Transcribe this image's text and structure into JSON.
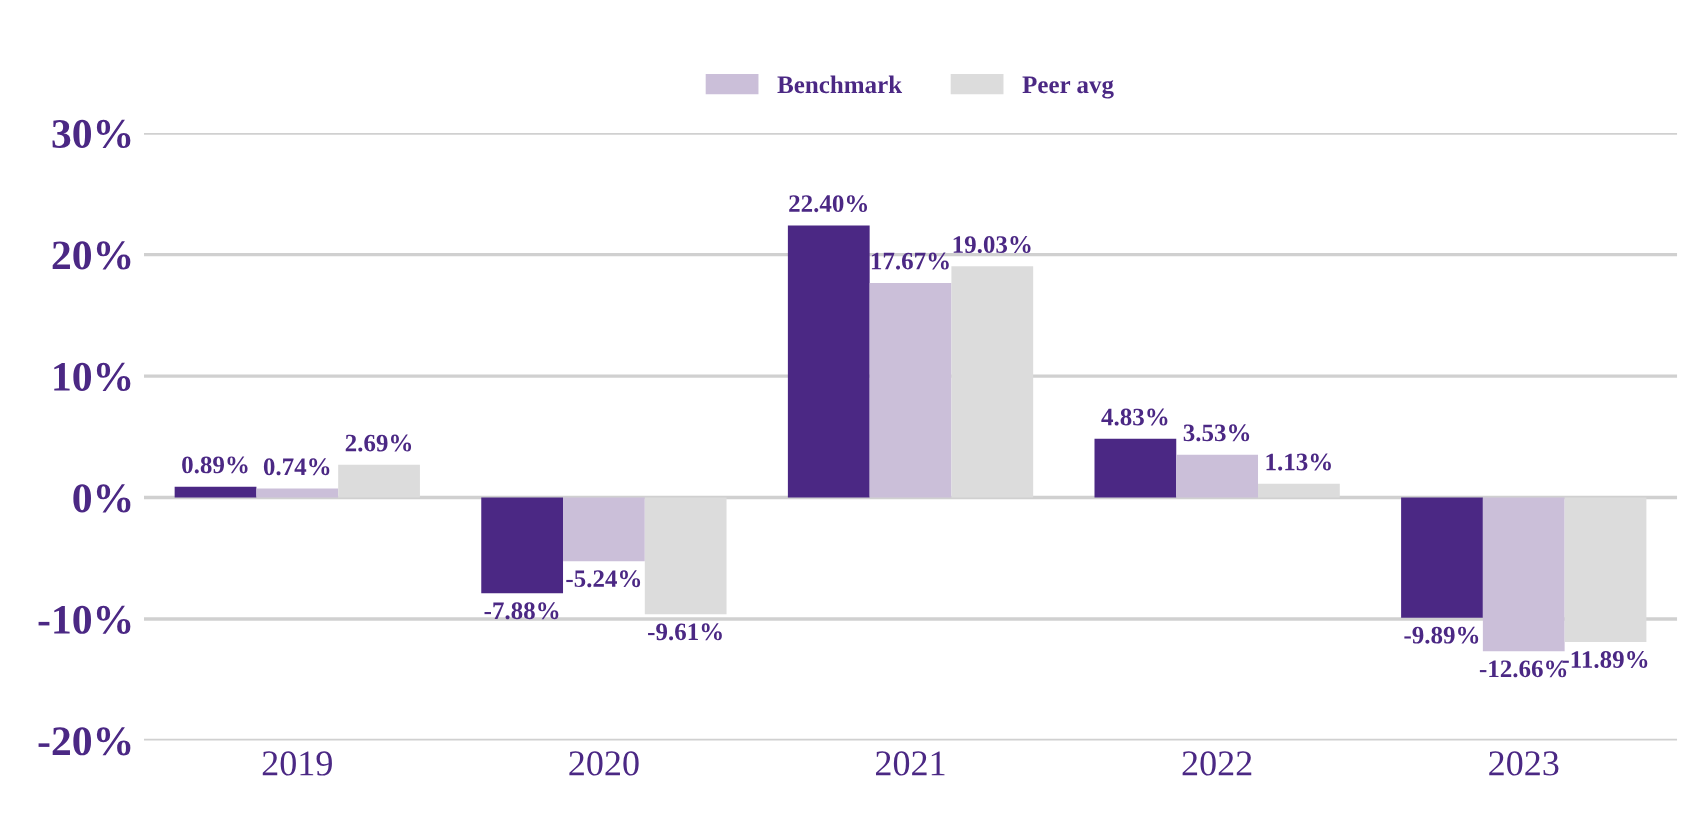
{
  "chart_data": {
    "type": "bar",
    "categories": [
      "2019",
      "2020",
      "2021",
      "2022",
      "2023"
    ],
    "series": [
      {
        "color": "#4b2884",
        "values": [
          0.89,
          -7.88,
          22.4,
          4.83,
          -9.89
        ],
        "value_labels": [
          "0.89%",
          "-7.88%",
          "22.40%",
          "4.83%",
          "-9.89%"
        ]
      },
      {
        "name": "Benchmark",
        "color": "#cbbfd9",
        "values": [
          0.74,
          -5.24,
          17.67,
          3.53,
          -12.66
        ],
        "value_labels": [
          "0.74%",
          "-5.24%",
          "17.67%",
          "3.53%",
          "-12.66%"
        ]
      },
      {
        "name": "Peer avg",
        "color": "#dcdcdc",
        "values": [
          2.69,
          -9.61,
          19.03,
          1.13,
          -11.89
        ],
        "value_labels": [
          "2.69%",
          "-9.61%",
          "19.03%",
          "1.13%",
          "-11.89%"
        ]
      }
    ],
    "ylim": [
      -20,
      30
    ],
    "yticks": [
      {
        "value": -20,
        "label": "-20%"
      },
      {
        "value": -10,
        "label": "-10%"
      },
      {
        "value": 0,
        "label": "0%"
      },
      {
        "value": 10,
        "label": "10%"
      },
      {
        "value": 20,
        "label": "20%"
      },
      {
        "value": 30,
        "label": "30%"
      }
    ],
    "grid": "y",
    "legend": "top"
  }
}
